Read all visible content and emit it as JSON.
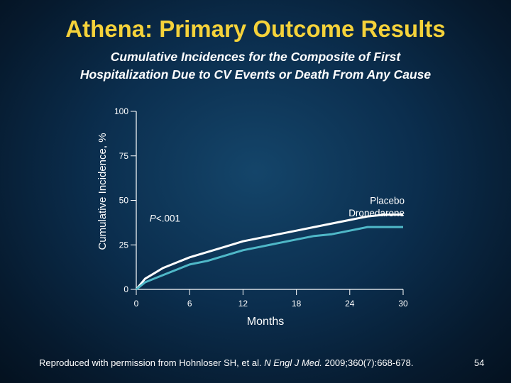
{
  "slide": {
    "title": "Athena: Primary Outcome Results",
    "subtitle_line1": "Cumulative Incidences for the Composite of First",
    "subtitle_line2": "Hospitalization Due to CV Events or Death From Any Cause",
    "citation_prefix": "Reproduced with permission from Hohnloser SH, et al. ",
    "citation_journal": "N Engl J Med.",
    "citation_suffix": " 2009;360(7):668-678.",
    "page_number": "54"
  },
  "colors": {
    "title": "#f5d23a",
    "text": "#ffffff",
    "placebo": "#ffffff",
    "dronedarone": "#4fb8c8"
  },
  "chart_data": {
    "type": "line",
    "title": "",
    "xlabel": "Months",
    "ylabel": "Cumulative Incidence, %",
    "xlim": [
      0,
      30
    ],
    "ylim": [
      0,
      100
    ],
    "xticks": [
      0,
      6,
      12,
      18,
      24,
      30
    ],
    "yticks": [
      0,
      25,
      50,
      75,
      100
    ],
    "grid": false,
    "annotations": [
      {
        "text_italic": "P",
        "text": "<.001",
        "x": 1.5,
        "y": 38
      }
    ],
    "series": [
      {
        "name": "Placebo",
        "color": "#ffffff",
        "x": [
          0,
          1,
          2,
          3,
          4,
          5,
          6,
          8,
          10,
          12,
          14,
          16,
          18,
          20,
          22,
          24,
          26,
          28,
          30
        ],
        "y": [
          0,
          6,
          9,
          12,
          14,
          16,
          18,
          21,
          24,
          27,
          29,
          31,
          33,
          35,
          37,
          39,
          41,
          42,
          42
        ]
      },
      {
        "name": "Dronedarone",
        "color": "#4fb8c8",
        "x": [
          0,
          1,
          2,
          3,
          4,
          5,
          6,
          8,
          10,
          12,
          14,
          16,
          18,
          20,
          22,
          24,
          26,
          28,
          30
        ],
        "y": [
          0,
          4,
          6,
          8,
          10,
          12,
          14,
          16,
          19,
          22,
          24,
          26,
          28,
          30,
          31,
          33,
          35,
          35,
          35
        ]
      }
    ]
  }
}
